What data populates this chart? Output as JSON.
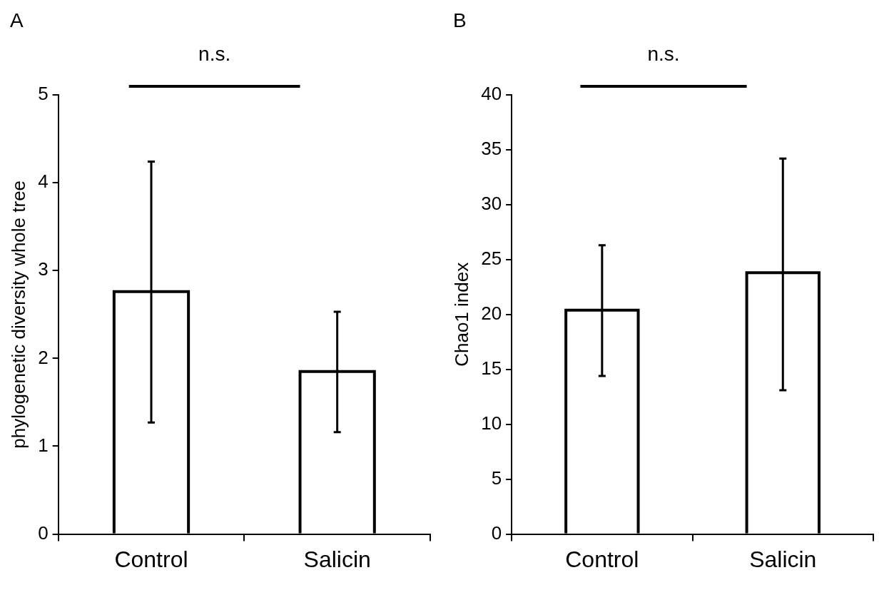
{
  "chart_data": [
    {
      "type": "bar",
      "categories": [
        "Control",
        "Salicin"
      ],
      "values": [
        2.76,
        1.85
      ],
      "errors": [
        [
          1.27,
          4.24
        ],
        [
          1.16,
          2.53
        ]
      ],
      "color": "#ffffff",
      "ylabel": "phylogenetic diversity whole tree",
      "ylim": [
        0,
        5
      ],
      "yticks": [
        0,
        1,
        2,
        3,
        4,
        5
      ],
      "annotations": [
        "A",
        "n.s."
      ]
    },
    {
      "type": "bar",
      "categories": [
        "Control",
        "Salicin"
      ],
      "values": [
        20.4,
        23.8
      ],
      "errors": [
        [
          14.4,
          26.3
        ],
        [
          13.1,
          34.2
        ]
      ],
      "color": "#ffffff",
      "ylabel": "Chao1 index",
      "ylim": [
        0,
        40
      ],
      "yticks": [
        0,
        5,
        10,
        15,
        20,
        25,
        30,
        35,
        40
      ],
      "annotations": [
        "B",
        "n.s."
      ]
    }
  ]
}
